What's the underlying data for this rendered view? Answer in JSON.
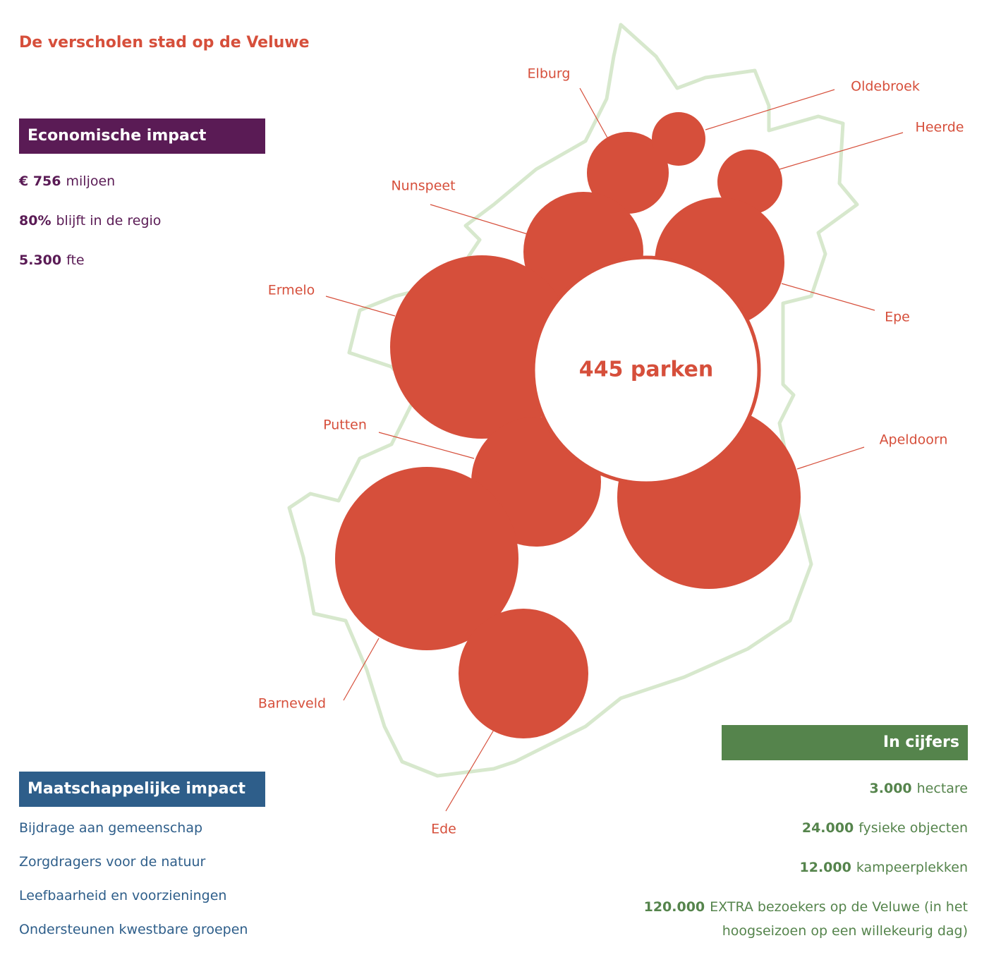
{
  "title": "De verscholen stad op de Veluwe",
  "economic": {
    "heading": "Economische impact",
    "items": [
      {
        "bold": "€ 756",
        "text": "miljoen"
      },
      {
        "bold": "80%",
        "text": "blijft in de regio"
      },
      {
        "bold": "5.300",
        "text": "fte"
      }
    ]
  },
  "social": {
    "heading": "Maatschappelijke impact",
    "items": [
      "Bijdrage aan gemeenschap",
      "Zorgdragers voor de natuur",
      "Leefbaarheid en voorzieningen",
      "Ondersteunen kwestbare groepen"
    ]
  },
  "figures": {
    "heading": "In cijfers",
    "items": [
      {
        "bold": "3.000",
        "text": "hectare"
      },
      {
        "bold": "24.000",
        "text": "fysieke objecten"
      },
      {
        "bold": "12.000",
        "text": "kampeerplekken"
      },
      {
        "bold": "120.000",
        "text": "EXTRA bezoekers op de Veluwe (in het hoogseizoen op een willekeurig dag)"
      }
    ]
  },
  "map": {
    "center": "445 parken",
    "municipalities": [
      "Elburg",
      "Oldebroek",
      "Heerde",
      "Nunspeet",
      "Epe",
      "Ermelo",
      "Putten",
      "Apeldoorn",
      "Barneveld",
      "Ede"
    ]
  }
}
